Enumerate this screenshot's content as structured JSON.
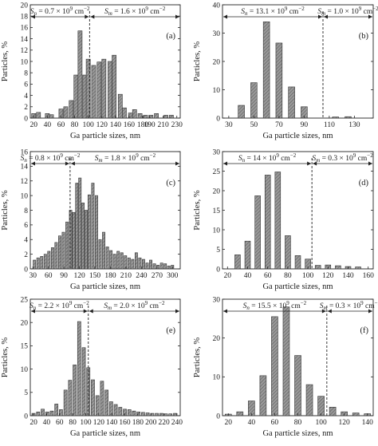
{
  "chart_data": [
    {
      "type": "bar",
      "panel_label": "(a)",
      "xlabel": "Ga particle sizes, nm",
      "ylabel": "Particles, %",
      "xlim": [
        15,
        235
      ],
      "ylim": [
        0,
        20
      ],
      "yticks": [
        0,
        2,
        4,
        6,
        8,
        10,
        12,
        14,
        16,
        18,
        20
      ],
      "xticks": [
        20,
        40,
        60,
        80,
        100,
        120,
        140,
        160,
        180,
        190,
        210,
        230
      ],
      "xtick_labels": [
        "20",
        "40",
        "60",
        "80",
        "100",
        "120",
        "140",
        "160",
        "180",
        "190",
        "210",
        "230"
      ],
      "bar_width": 6,
      "divider": 102,
      "sn_text": "Sn = 0.7 × 10^9 cm^−2",
      "sm_text": "Sm = 1.6 × 10^9 cm^−2",
      "bars": [
        [
          20,
          0.8
        ],
        [
          27,
          1.0
        ],
        [
          40,
          0.8
        ],
        [
          46,
          0.6
        ],
        [
          60,
          1.6
        ],
        [
          67,
          2.0
        ],
        [
          75,
          3.1
        ],
        [
          82,
          7.6
        ],
        [
          88,
          15.4
        ],
        [
          95,
          7.6
        ],
        [
          100,
          10.4
        ],
        [
          108,
          9.3
        ],
        [
          116,
          9.9
        ],
        [
          123,
          10.4
        ],
        [
          132,
          10.0
        ],
        [
          138,
          11.1
        ],
        [
          147,
          4.2
        ],
        [
          153,
          1.8
        ],
        [
          162,
          0.9
        ],
        [
          168,
          1.5
        ],
        [
          176,
          0.8
        ],
        [
          184,
          0.5
        ],
        [
          192,
          0.5
        ],
        [
          200,
          0.8
        ],
        [
          214,
          0.5
        ],
        [
          222,
          0.5
        ]
      ]
    },
    {
      "type": "bar",
      "panel_label": "(b)",
      "xlabel": "Ga particle sizes, nm",
      "ylabel": "Particles, %",
      "xlim": [
        25,
        145
      ],
      "ylim": [
        0,
        40
      ],
      "yticks": [
        0,
        10,
        20,
        30,
        40
      ],
      "xticks": [
        30,
        50,
        70,
        90,
        110,
        130
      ],
      "xtick_labels": [
        "30",
        "50",
        "70",
        "90",
        "110",
        "130"
      ],
      "bar_width": 5,
      "divider": 105,
      "sn_text": "Sn = 13.1 × 10^9 cm^−2",
      "sm_text": "Sm = 1.0 × 10^9 cm^−2",
      "bars": [
        [
          40,
          4.5
        ],
        [
          50,
          12.5
        ],
        [
          60,
          34.0
        ],
        [
          70,
          26.5
        ],
        [
          80,
          11.0
        ],
        [
          90,
          4.0
        ],
        [
          115,
          0.4
        ],
        [
          125,
          0.5
        ]
      ]
    },
    {
      "type": "bar",
      "panel_label": "(c)",
      "xlabel": "Ga particle sizes, nm",
      "ylabel": "Particles, %",
      "xlim": [
        25,
        315
      ],
      "ylim": [
        0,
        16
      ],
      "yticks": [
        0,
        2,
        4,
        6,
        8,
        10,
        12,
        14,
        16
      ],
      "xticks": [
        30,
        60,
        90,
        120,
        150,
        180,
        210,
        240,
        270,
        300
      ],
      "xtick_labels": [
        "30",
        "60",
        "90",
        "120",
        "150",
        "180",
        "210",
        "240",
        "270",
        "300"
      ],
      "bar_width": 5,
      "divider": 102,
      "sn_text": "Sn = 0.8 × 10^9 cm^−2",
      "sm_text": "Sm = 1.8 × 10^9 cm^−2",
      "bars": [
        [
          33,
          1.2
        ],
        [
          40,
          1.5
        ],
        [
          47,
          1.7
        ],
        [
          54,
          2.0
        ],
        [
          61,
          2.4
        ],
        [
          68,
          2.9
        ],
        [
          75,
          3.6
        ],
        [
          82,
          4.5
        ],
        [
          89,
          5.0
        ],
        [
          96,
          6.4
        ],
        [
          103,
          8.0
        ],
        [
          109,
          7.7
        ],
        [
          115,
          11.7
        ],
        [
          121,
          12.4
        ],
        [
          127,
          9.0
        ],
        [
          133,
          8.0
        ],
        [
          139,
          10.1
        ],
        [
          146,
          11.7
        ],
        [
          153,
          10.0
        ],
        [
          160,
          4.0
        ],
        [
          167,
          5.0
        ],
        [
          174,
          3.0
        ],
        [
          181,
          2.5
        ],
        [
          188,
          2.0
        ],
        [
          195,
          2.4
        ],
        [
          202,
          2.2
        ],
        [
          209,
          1.8
        ],
        [
          216,
          1.5
        ],
        [
          223,
          1.3
        ],
        [
          230,
          2.2
        ],
        [
          237,
          1.5
        ],
        [
          244,
          1.3
        ],
        [
          251,
          0.8
        ],
        [
          258,
          1.2
        ],
        [
          265,
          0.7
        ],
        [
          272,
          0.5
        ],
        [
          279,
          0.8
        ],
        [
          286,
          0.7
        ],
        [
          293,
          0.4
        ],
        [
          300,
          0.5
        ]
      ]
    },
    {
      "type": "bar",
      "panel_label": "(d)",
      "xlabel": "Ga particle sizes, nm",
      "ylabel": "Particles, %",
      "xlim": [
        15,
        165
      ],
      "ylim": [
        0,
        30
      ],
      "yticks": [
        0,
        5,
        10,
        15,
        20,
        25,
        30
      ],
      "xticks": [
        20,
        40,
        60,
        80,
        100,
        120,
        140,
        160
      ],
      "xtick_labels": [
        "20",
        "40",
        "60",
        "80",
        "100",
        "120",
        "140",
        "160"
      ],
      "bar_width": 5.5,
      "divider": 104,
      "sn_text": "Sn = 14 × 10^9 cm^−2",
      "sm_text": "Sm = 0.3 × 10^9 cm^−2",
      "bars": [
        [
          30,
          3.6
        ],
        [
          40,
          7.1
        ],
        [
          50,
          18.7
        ],
        [
          60,
          24.0
        ],
        [
          70,
          24.8
        ],
        [
          80,
          8.5
        ],
        [
          90,
          3.4
        ],
        [
          100,
          2.5
        ],
        [
          110,
          0.9
        ],
        [
          120,
          1.0
        ],
        [
          130,
          0.8
        ],
        [
          140,
          0.6
        ],
        [
          150,
          0.5
        ]
      ]
    },
    {
      "type": "bar",
      "panel_label": "(e)",
      "xlabel": "Ga particle sizes, nm",
      "ylabel": "Particles, %",
      "xlim": [
        15,
        245
      ],
      "ylim": [
        0,
        25
      ],
      "yticks": [
        0,
        5,
        10,
        15,
        20,
        25
      ],
      "xticks": [
        20,
        40,
        60,
        80,
        100,
        120,
        140,
        160,
        180,
        200,
        220,
        240
      ],
      "xtick_labels": [
        "20",
        "40",
        "60",
        "80",
        "100",
        "120",
        "140",
        "160",
        "180",
        "200",
        "220",
        "240"
      ],
      "bar_width": 5,
      "divider": 104,
      "sn_text": "Sn = 2.2 × 10^9 cm^−2",
      "sm_text": "Sm = 2.0 × 10^9 cm^−2",
      "bars": [
        [
          20,
          0.5
        ],
        [
          27,
          0.8
        ],
        [
          34,
          1.4
        ],
        [
          41,
          0.8
        ],
        [
          48,
          1.0
        ],
        [
          55,
          2.5
        ],
        [
          62,
          1.3
        ],
        [
          69,
          5.5
        ],
        [
          76,
          7.6
        ],
        [
          83,
          10.9
        ],
        [
          90,
          20.2
        ],
        [
          97,
          14.6
        ],
        [
          104,
          10.3
        ],
        [
          111,
          7.7
        ],
        [
          118,
          4.3
        ],
        [
          125,
          7.4
        ],
        [
          132,
          5.5
        ],
        [
          139,
          3.0
        ],
        [
          146,
          2.4
        ],
        [
          153,
          1.8
        ],
        [
          160,
          1.4
        ],
        [
          167,
          1.3
        ],
        [
          174,
          1.0
        ],
        [
          181,
          0.8
        ],
        [
          188,
          0.7
        ],
        [
          195,
          0.6
        ],
        [
          202,
          0.5
        ],
        [
          209,
          0.5
        ],
        [
          216,
          0.5
        ],
        [
          223,
          0.4
        ],
        [
          230,
          0.4
        ],
        [
          237,
          0.5
        ]
      ]
    },
    {
      "type": "bar",
      "panel_label": "(f)",
      "xlabel": "Ga particle sizes, nm",
      "ylabel": "Particles, %",
      "xlim": [
        15,
        145
      ],
      "ylim": [
        0,
        30
      ],
      "yticks": [
        0,
        10,
        20,
        30
      ],
      "xticks": [
        20,
        40,
        60,
        80,
        100,
        120,
        140
      ],
      "xtick_labels": [
        "20",
        "40",
        "60",
        "80",
        "100",
        "120",
        "140"
      ],
      "bar_width": 5.5,
      "divider": 105,
      "sn_text": "Sn = 15.5 × 10^9 cm^−2",
      "sm_text": "Sm = 0.3 × 10^9 cm^−2",
      "bars": [
        [
          20,
          0.4
        ],
        [
          30,
          1.0
        ],
        [
          40,
          3.8
        ],
        [
          50,
          10.3
        ],
        [
          60,
          25.5
        ],
        [
          70,
          28.0
        ],
        [
          80,
          15.5
        ],
        [
          90,
          8.0
        ],
        [
          100,
          5.0
        ],
        [
          110,
          2.2
        ],
        [
          120,
          1.0
        ],
        [
          130,
          0.7
        ],
        [
          140,
          0.5
        ]
      ]
    }
  ]
}
